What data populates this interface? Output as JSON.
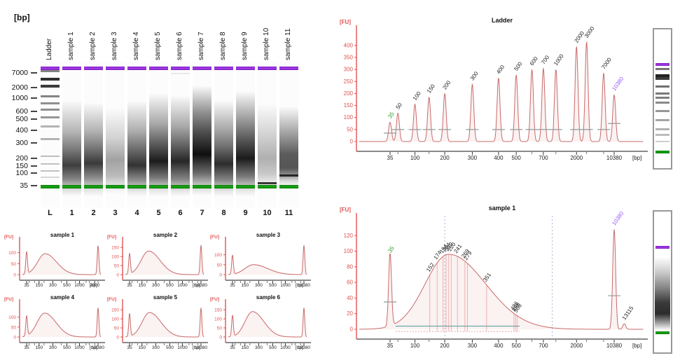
{
  "colors": {
    "curve": "#c96a6a",
    "curve_fill": "rgba(214,132,132,0.10)",
    "axis_red": "#e05252",
    "axis_gray": "#8a8a8a",
    "tick_text": "#222222",
    "marker_green": "#12960f",
    "marker_purple": "#9c27e0",
    "label_green": "#33a02c",
    "label_purple": "#9b59f5",
    "teal": "#4aa0a0",
    "grid_dash": "#9aa7c7",
    "subpeak_line": "rgba(225,110,110,0.55)",
    "pink_dash": "#e8a0a0",
    "cross_gray": "#8f9b9b"
  },
  "gel": {
    "unit": "[bp]",
    "axis": [
      {
        "label": "7000",
        "y": 100
      },
      {
        "label": "2000",
        "y": 121
      },
      {
        "label": "1000",
        "y": 136
      },
      {
        "label": "600",
        "y": 155
      },
      {
        "label": "500",
        "y": 166
      },
      {
        "label": "400",
        "y": 182
      },
      {
        "label": "300",
        "y": 200
      },
      {
        "label": "200",
        "y": 222
      },
      {
        "label": "150",
        "y": 233
      },
      {
        "label": "100",
        "y": 243
      },
      {
        "label": "35",
        "y": 261
      }
    ],
    "marker_top_offset": 7,
    "marker_bottom_offset": 176,
    "lanes": [
      {
        "name": "Ladder",
        "num": "L",
        "type": "ladder",
        "bands": [
          [
            12,
            0.5,
            3
          ],
          [
            23,
            0.85,
            4
          ],
          [
            33,
            0.8,
            4
          ],
          [
            48,
            0.5,
            3
          ],
          [
            58,
            0.45,
            3
          ],
          [
            67,
            0.45,
            3
          ],
          [
            78,
            0.42,
            3
          ],
          [
            91,
            0.3,
            3
          ],
          [
            109,
            0.3,
            3
          ],
          [
            134,
            0.26,
            2
          ],
          [
            145,
            0.24,
            2
          ],
          [
            155,
            0.24,
            2
          ],
          [
            164,
            0.15,
            2
          ]
        ],
        "smear": []
      },
      {
        "name": "sample 1",
        "num": "1",
        "smear": [
          [
            55,
            0
          ],
          [
            100,
            0.3
          ],
          [
            125,
            0.55
          ],
          [
            148,
            0.8
          ],
          [
            168,
            0.5
          ],
          [
            183,
            0.12
          ],
          [
            192,
            0
          ]
        ],
        "bands": []
      },
      {
        "name": "sample 2",
        "num": "2",
        "smear": [
          [
            58,
            0
          ],
          [
            98,
            0.3
          ],
          [
            122,
            0.55
          ],
          [
            145,
            0.82
          ],
          [
            167,
            0.45
          ],
          [
            183,
            0.1
          ],
          [
            192,
            0
          ]
        ],
        "bands": []
      },
      {
        "name": "sample 3",
        "num": "3",
        "smear": [
          [
            66,
            0
          ],
          [
            110,
            0.18
          ],
          [
            140,
            0.38
          ],
          [
            163,
            0.28
          ],
          [
            180,
            0.06
          ],
          [
            190,
            0
          ]
        ],
        "bands": []
      },
      {
        "name": "sample 4",
        "num": "4",
        "smear": [
          [
            55,
            0
          ],
          [
            98,
            0.32
          ],
          [
            124,
            0.6
          ],
          [
            148,
            0.85
          ],
          [
            170,
            0.45
          ],
          [
            185,
            0.08
          ],
          [
            193,
            0
          ]
        ],
        "bands": []
      },
      {
        "name": "sample 5",
        "num": "5",
        "smear": [
          [
            45,
            0
          ],
          [
            88,
            0.35
          ],
          [
            115,
            0.65
          ],
          [
            142,
            0.95
          ],
          [
            166,
            0.55
          ],
          [
            183,
            0.1
          ],
          [
            192,
            0
          ]
        ],
        "bands": []
      },
      {
        "name": "sample 6",
        "num": "6",
        "smear": [
          [
            48,
            0
          ],
          [
            92,
            0.35
          ],
          [
            117,
            0.62
          ],
          [
            142,
            0.9
          ],
          [
            168,
            0.5
          ],
          [
            184,
            0.1
          ],
          [
            192,
            0
          ]
        ],
        "bands": [
          [
            16,
            0.08,
            2
          ]
        ]
      },
      {
        "name": "sample 7",
        "num": "7",
        "smear": [
          [
            34,
            0
          ],
          [
            72,
            0.45
          ],
          [
            102,
            0.75
          ],
          [
            132,
            1.0
          ],
          [
            160,
            0.6
          ],
          [
            181,
            0.12
          ],
          [
            191,
            0
          ]
        ],
        "bands": []
      },
      {
        "name": "sample 8",
        "num": "8",
        "smear": [
          [
            55,
            0
          ],
          [
            96,
            0.35
          ],
          [
            122,
            0.6
          ],
          [
            146,
            0.88
          ],
          [
            169,
            0.5
          ],
          [
            184,
            0.1
          ],
          [
            193,
            0
          ]
        ],
        "bands": []
      },
      {
        "name": "sample 9",
        "num": "9",
        "smear": [
          [
            42,
            0
          ],
          [
            82,
            0.4
          ],
          [
            112,
            0.7
          ],
          [
            138,
            0.95
          ],
          [
            164,
            0.55
          ],
          [
            183,
            0.1
          ],
          [
            192,
            0
          ]
        ],
        "bands": []
      },
      {
        "name": "sample 10",
        "num": "10",
        "smear": [
          [
            60,
            0
          ],
          [
            105,
            0.18
          ],
          [
            138,
            0.32
          ],
          [
            160,
            0.22
          ],
          [
            172,
            0.08
          ],
          [
            180,
            0
          ]
        ],
        "bands": [
          [
            172,
            0.8,
            3
          ]
        ]
      },
      {
        "name": "sample 11",
        "num": "11",
        "smear": [
          [
            64,
            0
          ],
          [
            104,
            0.4
          ],
          [
            132,
            0.68
          ],
          [
            152,
            0.7
          ],
          [
            162,
            0.45
          ],
          [
            170,
            0.15
          ],
          [
            178,
            0
          ]
        ],
        "bands": [
          [
            161,
            0.8,
            3
          ]
        ]
      }
    ]
  },
  "strips": {
    "top": {
      "bands": [
        {
          "f": 0.247,
          "c": "purple",
          "h": 4
        },
        {
          "f": 0.285,
          "c": "#777777",
          "h": 3
        },
        {
          "f": 0.33,
          "c": "#222222",
          "h": 4
        },
        {
          "f": 0.352,
          "c": "#3c3c3c",
          "h": 4
        },
        {
          "f": 0.412,
          "c": "#6f6f6f",
          "h": 3
        },
        {
          "f": 0.462,
          "c": "#787878",
          "h": 3
        },
        {
          "f": 0.497,
          "c": "#808080",
          "h": 3
        },
        {
          "f": 0.533,
          "c": "#8a8a8a",
          "h": 3
        },
        {
          "f": 0.59,
          "c": "#979797",
          "h": 3
        },
        {
          "f": 0.66,
          "c": "#a4a4a4",
          "h": 3
        },
        {
          "f": 0.728,
          "c": "#b2b2b2",
          "h": 3
        },
        {
          "f": 0.77,
          "c": "#bcbcbc",
          "h": 3
        },
        {
          "f": 0.82,
          "c": "#cfcfcf",
          "h": 2
        },
        {
          "f": 0.89,
          "c": "green",
          "h": 4
        }
      ],
      "smear": []
    },
    "bottom": {
      "bands": [
        {
          "f": 0.247,
          "c": "purple",
          "h": 4
        },
        {
          "f": 0.866,
          "c": "green",
          "h": 4
        }
      ],
      "smear": [
        [
          0.33,
          0
        ],
        [
          0.44,
          0.22
        ],
        [
          0.55,
          0.5
        ],
        [
          0.66,
          0.82
        ],
        [
          0.74,
          0.88
        ],
        [
          0.8,
          0.45
        ],
        [
          0.845,
          0.1
        ],
        [
          0.862,
          0
        ]
      ]
    }
  },
  "chart_data": [
    {
      "id": "ladder-epg",
      "variant": "big",
      "type": "line",
      "title": "Ladder",
      "xlabel": "[bp]",
      "ylabel": "[FU]",
      "y_ticks": [
        0,
        50,
        100,
        150,
        200,
        250,
        300,
        350,
        400
      ],
      "y_plot_max": 455,
      "x_ticks": [
        35,
        100,
        200,
        300,
        400,
        500,
        700,
        2000,
        10380
      ],
      "x_minor": [
        50,
        150,
        600,
        1000,
        3000,
        7000
      ],
      "peaks": [
        {
          "bp": 35,
          "fu": 80,
          "label": "35",
          "color": "green",
          "cross": 35
        },
        {
          "bp": 50,
          "fu": 118,
          "label": "50",
          "cross": 50
        },
        {
          "bp": 100,
          "fu": 155,
          "label": "100",
          "cross": 50
        },
        {
          "bp": 150,
          "fu": 185,
          "label": "150",
          "cross": 50
        },
        {
          "bp": 200,
          "fu": 200,
          "label": "200",
          "cross": 50
        },
        {
          "bp": 300,
          "fu": 238,
          "label": "300",
          "cross": 50
        },
        {
          "bp": 400,
          "fu": 265,
          "label": "400",
          "cross": 50
        },
        {
          "bp": 500,
          "fu": 278,
          "label": "500",
          "cross": 50
        },
        {
          "bp": 600,
          "fu": 300,
          "label": "600",
          "cross": 50
        },
        {
          "bp": 700,
          "fu": 305,
          "label": "700",
          "cross": 50
        },
        {
          "bp": 1000,
          "fu": 300,
          "label": "1000",
          "cross": 50
        },
        {
          "bp": 2000,
          "fu": 395,
          "label": "2000",
          "cross": 50
        },
        {
          "bp": 3000,
          "fu": 415,
          "label": "3000",
          "cross": 50
        },
        {
          "bp": 7000,
          "fu": 285,
          "label": "7000",
          "cross": 50
        },
        {
          "bp": 10380,
          "fu": 195,
          "label": "10380",
          "color": "purple",
          "cross": 75
        }
      ],
      "smears": [],
      "sub_peak_labels": [],
      "gridlines_bp": [],
      "region_line": null
    },
    {
      "id": "sample1-epg",
      "variant": "big",
      "type": "line",
      "title": "sample 1",
      "xlabel": "[bp]",
      "ylabel": "[FU]",
      "y_ticks": [
        0,
        20,
        40,
        60,
        80,
        100,
        120
      ],
      "y_plot_max": 140,
      "x_ticks": [
        35,
        100,
        200,
        300,
        400,
        500,
        700,
        2000,
        10380
      ],
      "x_minor": [
        50,
        150,
        600,
        1000,
        3000,
        7000
      ],
      "peaks": [
        {
          "bp": 35,
          "fu": 93,
          "label": "35",
          "color": "green",
          "cross": 35
        },
        {
          "bp": 10380,
          "fu": 128,
          "label": "10380",
          "color": "purple",
          "cross": 43
        },
        {
          "bp": 13115,
          "fu": 7,
          "label": "13115"
        }
      ],
      "smears": [
        {
          "bp": 212,
          "fu": 96,
          "sigmaL": 0.105,
          "sigmaR": 0.165
        }
      ],
      "sub_peak_labels": [
        152,
        174,
        194,
        204,
        212,
        220,
        241,
        269,
        279,
        351,
        486,
        496,
        506
      ],
      "gridlines_bp": [
        200,
        900
      ],
      "region_line": {
        "from": 45,
        "to": 520,
        "fu": 4
      }
    },
    {
      "id": "s1-small",
      "variant": "small",
      "type": "line",
      "title": "sample 1",
      "xlabel": "[bp]",
      "ylabel": "[FU]",
      "y_ticks": [
        0,
        50,
        100
      ],
      "y_plot_max": 140,
      "x_ticks": [
        35,
        150,
        300,
        500,
        1000,
        7000
      ],
      "x_minor": [
        50,
        100,
        200,
        400,
        700,
        2000,
        3000,
        10380
      ],
      "peaks": [
        {
          "bp": 35,
          "fu": 100
        },
        {
          "bp": 10380,
          "fu": 130
        }
      ],
      "smears": [
        {
          "bp": 210,
          "fu": 95,
          "sigmaL": 0.105,
          "sigmaR": 0.16
        }
      ],
      "sub_peak_labels": [],
      "gridlines_bp": [],
      "region_line": null
    },
    {
      "id": "s2-small",
      "variant": "small",
      "type": "line",
      "title": "sample 2",
      "xlabel": "[bp]",
      "ylabel": "[FU]",
      "y_ticks": [
        0,
        50,
        100,
        150
      ],
      "y_plot_max": 170,
      "x_ticks": [
        35,
        150,
        300,
        500,
        1000,
        10380
      ],
      "x_minor": [
        50,
        100,
        200,
        400,
        700,
        2000,
        3000,
        7000
      ],
      "peaks": [
        {
          "bp": 35,
          "fu": 112
        },
        {
          "bp": 10380,
          "fu": 160
        }
      ],
      "smears": [
        {
          "bp": 215,
          "fu": 130,
          "sigmaL": 0.105,
          "sigmaR": 0.16
        }
      ],
      "sub_peak_labels": [],
      "gridlines_bp": [],
      "region_line": null
    },
    {
      "id": "s3-small",
      "variant": "small",
      "type": "line",
      "title": "sample 3",
      "xlabel": "[bp]",
      "ylabel": "[FU]",
      "y_ticks": [
        0,
        50,
        100
      ],
      "y_plot_max": 155,
      "x_ticks": [
        35,
        150,
        300,
        500,
        1000,
        10380
      ],
      "x_minor": [
        50,
        100,
        200,
        400,
        700,
        2000,
        3000,
        7000
      ],
      "peaks": [
        {
          "bp": 35,
          "fu": 95
        },
        {
          "bp": 10380,
          "fu": 145
        }
      ],
      "smears": [
        {
          "bp": 235,
          "fu": 50,
          "sigmaL": 0.12,
          "sigmaR": 0.2
        }
      ],
      "sub_peak_labels": [],
      "gridlines_bp": [],
      "region_line": null
    },
    {
      "id": "s4-small",
      "variant": "small",
      "type": "line",
      "title": "sample 4",
      "xlabel": "[bp]",
      "ylabel": "[FU]",
      "y_ticks": [
        0,
        50,
        100
      ],
      "y_plot_max": 155,
      "x_ticks": [
        35,
        150,
        300,
        500,
        1000,
        10380
      ],
      "x_minor": [
        50,
        100,
        200,
        400,
        700,
        2000,
        3000,
        7000
      ],
      "peaks": [
        {
          "bp": 35,
          "fu": 100
        },
        {
          "bp": 10380,
          "fu": 145
        }
      ],
      "smears": [
        {
          "bp": 205,
          "fu": 120,
          "sigmaL": 0.105,
          "sigmaR": 0.16
        }
      ],
      "sub_peak_labels": [],
      "gridlines_bp": [],
      "region_line": null
    },
    {
      "id": "s5-small",
      "variant": "small",
      "type": "line",
      "title": "sample 5",
      "xlabel": "[bp]",
      "ylabel": "[FU]",
      "y_ticks": [
        0,
        50,
        100,
        150
      ],
      "y_plot_max": 170,
      "x_ticks": [
        35,
        150,
        300,
        500,
        1000,
        10380
      ],
      "x_minor": [
        50,
        100,
        200,
        400,
        700,
        2000,
        3000,
        7000
      ],
      "peaks": [
        {
          "bp": 35,
          "fu": 125
        },
        {
          "bp": 10380,
          "fu": 158
        }
      ],
      "smears": [
        {
          "bp": 225,
          "fu": 135,
          "sigmaL": 0.105,
          "sigmaR": 0.16
        }
      ],
      "sub_peak_labels": [],
      "gridlines_bp": [],
      "region_line": null
    },
    {
      "id": "s6-small",
      "variant": "small",
      "type": "line",
      "title": "sample 6",
      "xlabel": "[bp]",
      "ylabel": "[FU]",
      "y_ticks": [
        0,
        50,
        100,
        150
      ],
      "y_plot_max": 170,
      "x_ticks": [
        35,
        150,
        300,
        500,
        1000,
        10380
      ],
      "x_minor": [
        50,
        100,
        200,
        400,
        700,
        2000,
        3000,
        7000
      ],
      "peaks": [
        {
          "bp": 35,
          "fu": 115
        },
        {
          "bp": 10380,
          "fu": 158
        }
      ],
      "smears": [
        {
          "bp": 225,
          "fu": 140,
          "sigmaL": 0.105,
          "sigmaR": 0.16
        }
      ],
      "sub_peak_labels": [],
      "gridlines_bp": [],
      "region_line": null
    }
  ]
}
